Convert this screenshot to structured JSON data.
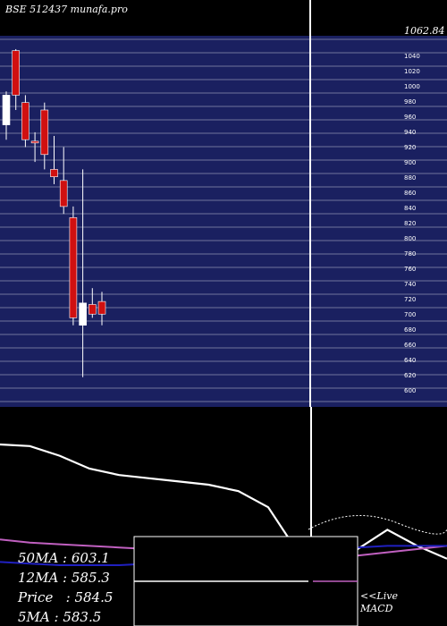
{
  "chart_data": {
    "type": "candlestick",
    "title": "BSE 512437 munafa.pro",
    "price_axis": {
      "ylim": [
        580,
        1080
      ],
      "top_label": "1062.84",
      "tick_labels": [
        "1062.84",
        "1040",
        "1020",
        "1000",
        "980",
        "960",
        "940",
        "920",
        "900",
        "880",
        "860",
        "840",
        "820",
        "800",
        "780",
        "760",
        "740",
        "720",
        "700",
        "680",
        "660",
        "640",
        "620",
        "600"
      ]
    },
    "candles": [
      {
        "open": 1000,
        "close": 960,
        "high": 1005,
        "low": 940,
        "color": "white"
      },
      {
        "open": 1060,
        "close": 1000,
        "high": 1062,
        "low": 980,
        "color": "red"
      },
      {
        "open": 990,
        "close": 940,
        "high": 1000,
        "low": 930,
        "color": "red"
      },
      {
        "open": 938,
        "close": 936,
        "high": 950,
        "low": 910,
        "color": "red"
      },
      {
        "open": 980,
        "close": 920,
        "high": 990,
        "low": 900,
        "color": "red"
      },
      {
        "open": 900,
        "close": 890,
        "high": 945,
        "low": 880,
        "color": "red"
      },
      {
        "open": 885,
        "close": 850,
        "high": 930,
        "low": 840,
        "color": "red"
      },
      {
        "open": 835,
        "close": 700,
        "high": 850,
        "low": 690,
        "color": "red"
      },
      {
        "open": 690,
        "close": 720,
        "high": 900,
        "low": 620,
        "color": "white"
      },
      {
        "open": 718,
        "close": 705,
        "high": 740,
        "low": 700,
        "color": "red"
      },
      {
        "open": 722,
        "close": 705,
        "high": 735,
        "low": 690,
        "color": "red"
      }
    ],
    "lower_panel": {
      "type": "line",
      "label": "MACD",
      "series": [
        {
          "color": "#ffffff",
          "values": [
            0.85,
            0.84,
            0.78,
            0.7,
            0.66,
            0.64,
            0.62,
            0.6,
            0.56,
            0.46,
            0.18,
            0.14,
            0.2,
            0.32,
            0.22,
            0.14
          ]
        },
        {
          "color": "#c060c0",
          "values": [
            0.26,
            0.24,
            0.23,
            0.22,
            0.21,
            0.2,
            0.19,
            0.18,
            0.17,
            0.16,
            0.15,
            0.15,
            0.16,
            0.18,
            0.2,
            0.22
          ]
        },
        {
          "color": "#2020c0",
          "values": [
            0.12,
            0.11,
            0.1,
            0.1,
            0.1,
            0.11,
            0.13,
            0.15,
            0.17,
            0.19,
            0.2,
            0.2,
            0.21,
            0.22,
            0.22,
            0.22
          ]
        }
      ]
    }
  },
  "stats": {
    "ma50": "50MA : 603.1",
    "ma12": "12MA : 585.3",
    "price": "Price   : 584.5",
    "ma5": "5MA : 583.5"
  },
  "live": {
    "line1": "<<Live",
    "line2": "MACD"
  }
}
